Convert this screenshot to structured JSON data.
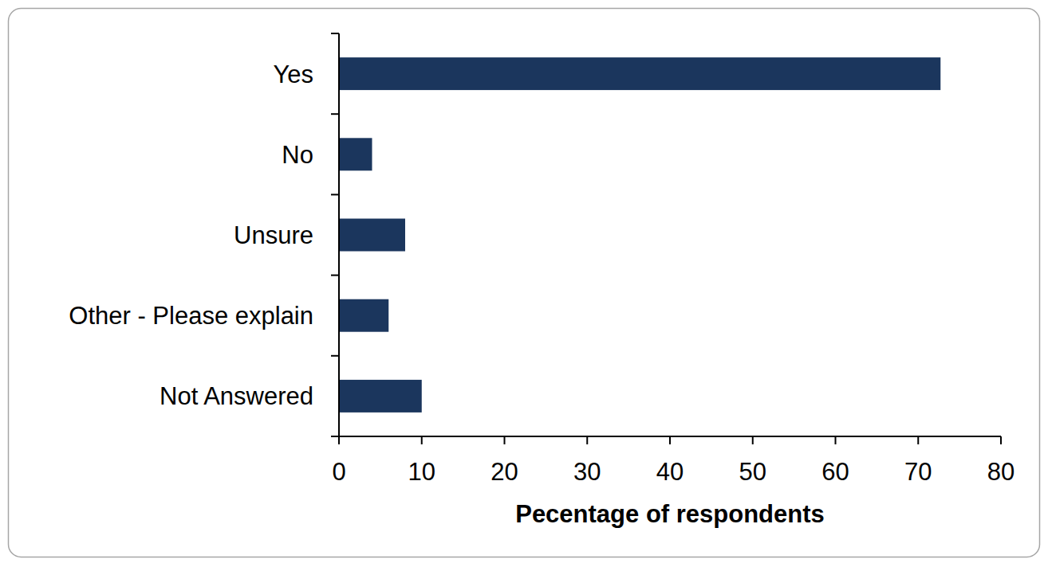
{
  "chart_data": {
    "type": "bar",
    "orientation": "horizontal",
    "categories": [
      "Yes",
      "No",
      "Unsure",
      "Other - Please explain",
      "Not Answered"
    ],
    "values": [
      72.7,
      4,
      8,
      6,
      10
    ],
    "color": "#1b365d",
    "xlabel": "Pecentage of respondents",
    "xlim": [
      0,
      80
    ],
    "xticks": [
      0,
      10,
      20,
      30,
      40,
      50,
      60,
      70,
      80
    ],
    "grid": false
  }
}
